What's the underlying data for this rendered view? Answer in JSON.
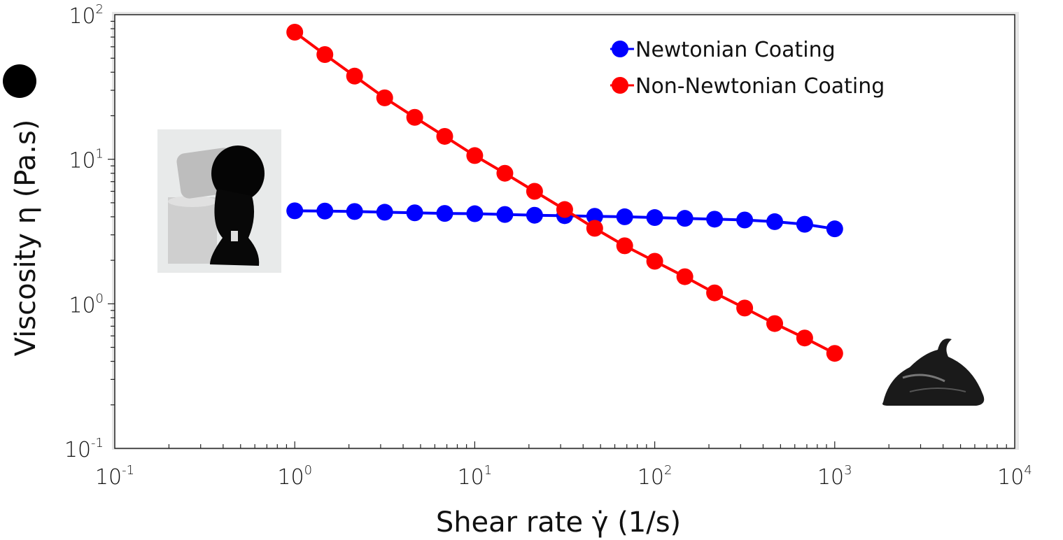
{
  "chart_data": {
    "type": "line",
    "xlabel": "Shear rate γ̇  (1/s)",
    "ylabel": "Viscosity η  (Pa.s)",
    "xscale": "log",
    "yscale": "log",
    "xlim": [
      0.1,
      10000
    ],
    "ylim": [
      0.1,
      100
    ],
    "x_ticks": [
      {
        "base": "10",
        "exp": "-1"
      },
      {
        "base": "10",
        "exp": "0"
      },
      {
        "base": "10",
        "exp": "1"
      },
      {
        "base": "10",
        "exp": "2"
      },
      {
        "base": "10",
        "exp": "3"
      },
      {
        "base": "10",
        "exp": "4"
      }
    ],
    "y_ticks": [
      {
        "base": "10",
        "exp": "-1"
      },
      {
        "base": "10",
        "exp": "0"
      },
      {
        "base": "10",
        "exp": "1"
      },
      {
        "base": "10",
        "exp": "2"
      }
    ],
    "legend_position": "top-right",
    "grid": false,
    "x": [
      1,
      1.47,
      2.15,
      3.16,
      4.64,
      6.81,
      10,
      14.7,
      21.5,
      31.6,
      46.4,
      68.1,
      100,
      147,
      215,
      316,
      464,
      681,
      1000
    ],
    "series": [
      {
        "name": "Newtonian Coating",
        "color": "#0000ff",
        "values": [
          4.4,
          4.38,
          4.35,
          4.3,
          4.26,
          4.22,
          4.2,
          4.15,
          4.1,
          4.07,
          4.03,
          4.0,
          3.95,
          3.9,
          3.85,
          3.8,
          3.7,
          3.55,
          3.3
        ]
      },
      {
        "name": "Non-Newtonian Coating",
        "color": "#ff0000",
        "values": [
          75.7,
          53,
          37.6,
          26.6,
          19.5,
          14.4,
          10.6,
          8.0,
          6.0,
          4.49,
          3.33,
          2.52,
          1.97,
          1.54,
          1.19,
          0.935,
          0.73,
          0.58,
          0.454
        ]
      }
    ]
  }
}
